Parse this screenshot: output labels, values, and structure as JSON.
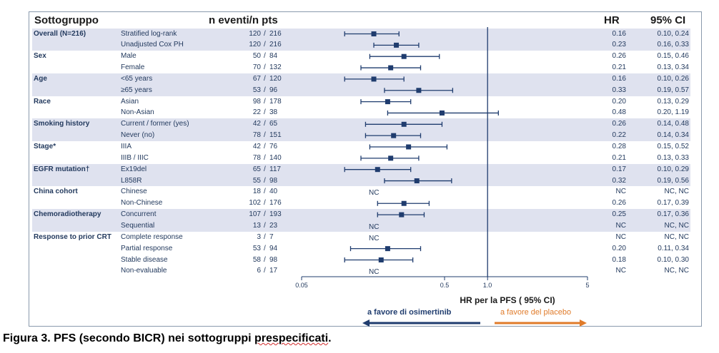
{
  "header": {
    "sottogruppo": "Sottogruppo",
    "events": "n eventi/n pts",
    "hr": "HR",
    "ci": "95% CI"
  },
  "rows": [
    {
      "group": "Overall (N=216)",
      "label": "Stratified log-rank",
      "events": "120",
      "pts": "216",
      "hr": "0.16",
      "ci": "0.10, 0.24",
      "est": 0.16,
      "lo": 0.1,
      "hi": 0.24
    },
    {
      "group": "",
      "label": "Unadjusted Cox PH",
      "events": "120",
      "pts": "216",
      "hr": "0.23",
      "ci": "0.16, 0.33",
      "est": 0.23,
      "lo": 0.16,
      "hi": 0.33
    },
    {
      "group": "Sex",
      "label": "Male",
      "events": "50",
      "pts": "84",
      "hr": "0.26",
      "ci": "0.15, 0.46",
      "est": 0.26,
      "lo": 0.15,
      "hi": 0.46
    },
    {
      "group": "",
      "label": "Female",
      "events": "70",
      "pts": "132",
      "hr": "0.21",
      "ci": "0.13, 0.34",
      "est": 0.21,
      "lo": 0.13,
      "hi": 0.34
    },
    {
      "group": "Age",
      "label": "<65 years",
      "events": "67",
      "pts": "120",
      "hr": "0.16",
      "ci": "0.10, 0.26",
      "est": 0.16,
      "lo": 0.1,
      "hi": 0.26
    },
    {
      "group": "",
      "label": "≥65 years",
      "events": "53",
      "pts": "96",
      "hr": "0.33",
      "ci": "0.19, 0.57",
      "est": 0.33,
      "lo": 0.19,
      "hi": 0.57
    },
    {
      "group": "Race",
      "label": "Asian",
      "events": "98",
      "pts": "178",
      "hr": "0.20",
      "ci": "0.13, 0.29",
      "est": 0.2,
      "lo": 0.13,
      "hi": 0.29
    },
    {
      "group": "",
      "label": "Non-Asian",
      "events": "22",
      "pts": "38",
      "hr": "0.48",
      "ci": "0.20, 1.19",
      "est": 0.48,
      "lo": 0.2,
      "hi": 1.19
    },
    {
      "group": "Smoking history",
      "label": "Current / former (yes)",
      "events": "42",
      "pts": "65",
      "hr": "0.26",
      "ci": "0.14, 0.48",
      "est": 0.26,
      "lo": 0.14,
      "hi": 0.48
    },
    {
      "group": "",
      "label": "Never (no)",
      "events": "78",
      "pts": "151",
      "hr": "0.22",
      "ci": "0.14, 0.34",
      "est": 0.22,
      "lo": 0.14,
      "hi": 0.34
    },
    {
      "group": "Stage*",
      "label": "IIIA",
      "events": "42",
      "pts": "76",
      "hr": "0.28",
      "ci": "0.15, 0.52",
      "est": 0.28,
      "lo": 0.15,
      "hi": 0.52
    },
    {
      "group": "",
      "label": "IIIB / IIIC",
      "events": "78",
      "pts": "140",
      "hr": "0.21",
      "ci": "0.13, 0.33",
      "est": 0.21,
      "lo": 0.13,
      "hi": 0.33
    },
    {
      "group": "EGFR mutation†",
      "label": "Ex19del",
      "events": "65",
      "pts": "117",
      "hr": "0.17",
      "ci": "0.10, 0.29",
      "est": 0.17,
      "lo": 0.1,
      "hi": 0.29
    },
    {
      "group": "",
      "label": "L858R",
      "events": "55",
      "pts": "98",
      "hr": "0.32",
      "ci": "0.19, 0.56",
      "est": 0.32,
      "lo": 0.19,
      "hi": 0.56
    },
    {
      "group": "China cohort",
      "label": "Chinese",
      "events": "18",
      "pts": "40",
      "hr": "NC",
      "ci": "NC, NC",
      "est": null,
      "lo": null,
      "hi": null
    },
    {
      "group": "",
      "label": "Non-Chinese",
      "events": "102",
      "pts": "176",
      "hr": "0.26",
      "ci": "0.17, 0.39",
      "est": 0.26,
      "lo": 0.17,
      "hi": 0.39
    },
    {
      "group": "Chemoradiotherapy",
      "label": "Concurrent",
      "events": "107",
      "pts": "193",
      "hr": "0.25",
      "ci": "0.17, 0.36",
      "est": 0.25,
      "lo": 0.17,
      "hi": 0.36
    },
    {
      "group": "",
      "label": "Sequential",
      "events": "13",
      "pts": "23",
      "hr": "NC",
      "ci": "NC, NC",
      "est": null,
      "lo": null,
      "hi": null
    },
    {
      "group": "Response to prior CRT",
      "label": "Complete response",
      "events": "3",
      "pts": "7",
      "hr": "NC",
      "ci": "NC, NC",
      "est": null,
      "lo": null,
      "hi": null
    },
    {
      "group": "",
      "label": "Partial response",
      "events": "53",
      "pts": "94",
      "hr": "0.20",
      "ci": "0.11, 0.34",
      "est": 0.2,
      "lo": 0.11,
      "hi": 0.34
    },
    {
      "group": "",
      "label": "Stable disease",
      "events": "58",
      "pts": "98",
      "hr": "0.18",
      "ci": "0.10, 0.30",
      "est": 0.18,
      "lo": 0.1,
      "hi": 0.3
    },
    {
      "group": "",
      "label": "Non-evaluable",
      "events": "6",
      "pts": "17",
      "hr": "NC",
      "ci": "NC, NC",
      "est": null,
      "lo": null,
      "hi": null
    }
  ],
  "chart_data": {
    "type": "forest",
    "xscale": "log",
    "xlim": [
      0.05,
      5
    ],
    "xticks": [
      0.05,
      0.5,
      1.0,
      5
    ],
    "xtick_labels": [
      "0.05",
      "0.5",
      "1.0",
      "5"
    ],
    "reference_line": 1.0,
    "xlabel": "HR per la PFS ( 95% CI)",
    "nc_label": "NC",
    "favors_left": "a favore di osimertinib",
    "favors_right": "a favore del placebo",
    "colors": {
      "marker": "#1f3c6e",
      "band": "#dfe2ef",
      "left_arrow": "#1f3c6e",
      "right_arrow": "#e07b2a"
    }
  },
  "caption": {
    "prefix": "Figura 3. PFS (secondo BICR) nei sottogruppi ",
    "underlined": "prespecificati",
    "suffix": "."
  }
}
